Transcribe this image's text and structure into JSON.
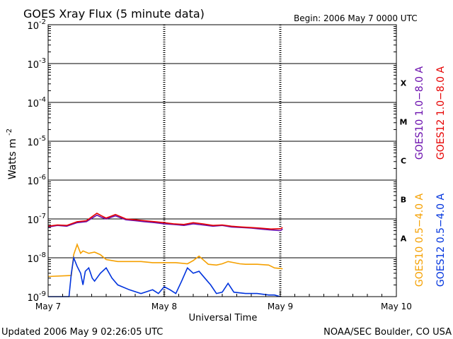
{
  "chart_data": {
    "type": "line",
    "title": "GOES Xray Flux (5 minute data)",
    "begin_label": "Begin:  2006 May 7 0000 UTC",
    "ylabel_base": "Watts m",
    "ylabel_exp": "-2",
    "xlabel": "Universal Time",
    "y_scale": "log",
    "ylim": [
      "1e-9",
      "1e-2"
    ],
    "y_ticks": [
      {
        "base": "10",
        "exp": "-2",
        "value": 0.01
      },
      {
        "base": "10",
        "exp": "-3",
        "value": 0.001
      },
      {
        "base": "10",
        "exp": "-4",
        "value": 0.0001
      },
      {
        "base": "10",
        "exp": "-5",
        "value": 1e-05
      },
      {
        "base": "10",
        "exp": "-6",
        "value": 1e-06
      },
      {
        "base": "10",
        "exp": "-7",
        "value": 1e-07
      },
      {
        "base": "10",
        "exp": "-8",
        "value": 1e-08
      },
      {
        "base": "10",
        "exp": "-9",
        "value": 1e-09
      }
    ],
    "x_unit": "days since 2006 May 7 0000 UTC",
    "xlim": [
      0,
      3
    ],
    "x_ticks": [
      {
        "label": "May 7",
        "value": 0
      },
      {
        "label": "May 8",
        "value": 1
      },
      {
        "label": "May 9",
        "value": 2
      },
      {
        "label": "May 10",
        "value": 3
      }
    ],
    "flare_classes": [
      {
        "label": "X",
        "value": 0.000316
      },
      {
        "label": "M",
        "value": 3.16e-05
      },
      {
        "label": "C",
        "value": 3.16e-06
      },
      {
        "label": "B",
        "value": 3.16e-07
      },
      {
        "label": "A",
        "value": 3.16e-08
      }
    ],
    "threshold_lines": [
      0.001,
      0.0001,
      1e-05,
      1e-06,
      1e-07,
      1e-08
    ],
    "grid": "horizontal at decades; dashed verticals at day boundaries",
    "series": [
      {
        "name": "GOES10 1.0-8.0 A",
        "color": "#6a0dad",
        "x": [
          0,
          0.08,
          0.16,
          0.25,
          0.33,
          0.42,
          0.46,
          0.5,
          0.58,
          0.67,
          0.75,
          0.83,
          0.92,
          1.0,
          1.08,
          1.17,
          1.25,
          1.33,
          1.42,
          1.5,
          1.58,
          1.67,
          1.75,
          1.83,
          1.92,
          2.0,
          2.02
        ],
        "y": [
          6.2e-08,
          6.8e-08,
          6.5e-08,
          8e-08,
          8.5e-08,
          1.25e-07,
          1.1e-07,
          1e-07,
          1.2e-07,
          9.5e-08,
          9e-08,
          8.5e-08,
          8e-08,
          7.5e-08,
          7.2e-08,
          6.8e-08,
          7.5e-08,
          7e-08,
          6.5e-08,
          6.8e-08,
          6.2e-08,
          6e-08,
          5.8e-08,
          5.5e-08,
          5.2e-08,
          5e-08,
          5.5e-08
        ]
      },
      {
        "name": "GOES12 1.0-8.0 A",
        "color": "#e60000",
        "x": [
          0,
          0.08,
          0.16,
          0.25,
          0.33,
          0.42,
          0.46,
          0.5,
          0.58,
          0.67,
          0.75,
          0.83,
          0.92,
          1.0,
          1.08,
          1.17,
          1.25,
          1.33,
          1.42,
          1.5,
          1.58,
          1.67,
          1.75,
          1.83,
          1.92,
          2.0,
          2.02
        ],
        "y": [
          6.5e-08,
          7e-08,
          6.8e-08,
          8.5e-08,
          9e-08,
          1.4e-07,
          1.2e-07,
          1.05e-07,
          1.3e-07,
          1e-07,
          9.5e-08,
          9e-08,
          8.5e-08,
          8e-08,
          7.5e-08,
          7.2e-08,
          8e-08,
          7.5e-08,
          6.8e-08,
          7e-08,
          6.5e-08,
          6.2e-08,
          6e-08,
          5.8e-08,
          5.5e-08,
          5.6e-08,
          6e-08
        ]
      },
      {
        "name": "GOES10 0.5-4.0 A",
        "color": "#f5a000",
        "x": [
          0,
          0.2,
          0.22,
          0.25,
          0.28,
          0.3,
          0.35,
          0.4,
          0.45,
          0.5,
          0.55,
          0.6,
          0.7,
          0.8,
          0.9,
          1.0,
          1.1,
          1.2,
          1.25,
          1.3,
          1.38,
          1.45,
          1.5,
          1.55,
          1.6,
          1.65,
          1.7,
          1.8,
          1.9,
          1.95,
          2.02
        ],
        "y": [
          3.3e-09,
          3.5e-09,
          1.2e-08,
          2.2e-08,
          1.3e-08,
          1.5e-08,
          1.3e-08,
          1.4e-08,
          1.2e-08,
          9e-09,
          8.5e-09,
          8e-09,
          8e-09,
          8e-09,
          7.5e-09,
          7.5e-09,
          7.5e-09,
          7e-09,
          8.5e-09,
          1.1e-08,
          6.8e-09,
          6.5e-09,
          7e-09,
          8e-09,
          7.5e-09,
          7e-09,
          6.8e-09,
          6.8e-09,
          6.5e-09,
          5.5e-09,
          5.2e-09
        ]
      },
      {
        "name": "GOES12 0.5-4.0 A",
        "color": "#0033dd",
        "x": [
          0,
          0.18,
          0.2,
          0.22,
          0.25,
          0.28,
          0.3,
          0.32,
          0.35,
          0.38,
          0.4,
          0.45,
          0.5,
          0.55,
          0.6,
          0.7,
          0.8,
          0.9,
          0.95,
          1.0,
          1.05,
          1.1,
          1.15,
          1.2,
          1.25,
          1.3,
          1.35,
          1.4,
          1.45,
          1.5,
          1.55,
          1.6,
          1.7,
          1.8,
          1.9,
          1.95,
          2.0
        ],
        "y": [
          1e-09,
          1e-09,
          4e-09,
          1e-08,
          6e-09,
          4e-09,
          2e-09,
          4.5e-09,
          5.5e-09,
          3e-09,
          2.5e-09,
          4e-09,
          5.5e-09,
          3e-09,
          2e-09,
          1.5e-09,
          1.2e-09,
          1.5e-09,
          1.2e-09,
          1.8e-09,
          1.5e-09,
          1.2e-09,
          2.5e-09,
          5.5e-09,
          4e-09,
          4.5e-09,
          3e-09,
          2e-09,
          1.2e-09,
          1.3e-09,
          2.2e-09,
          1.3e-09,
          1.2e-09,
          1.2e-09,
          1.1e-09,
          1.1e-09,
          1e-09
        ]
      }
    ]
  },
  "footer": {
    "updated": "Updated 2006 May  9 02:26:05 UTC",
    "source": "NOAA/SEC Boulder, CO USA"
  }
}
